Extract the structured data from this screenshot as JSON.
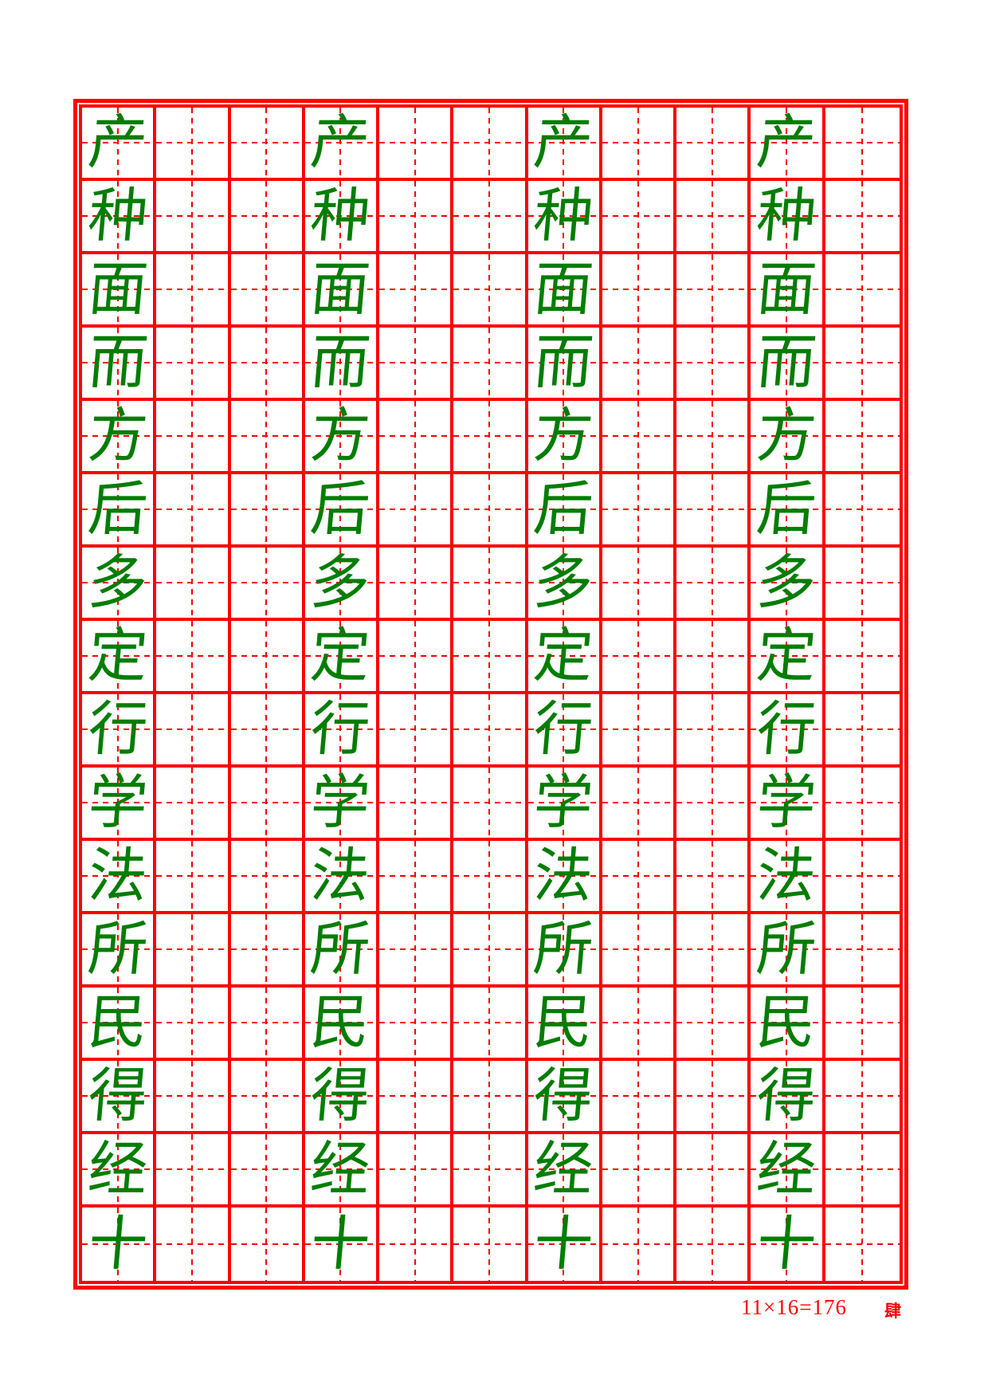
{
  "grid": {
    "rows": 16,
    "columns": 11,
    "character_columns": [
      1,
      4,
      7,
      10
    ],
    "row_characters": [
      "产",
      "种",
      "面",
      "而",
      "方",
      "后",
      "多",
      "定",
      "行",
      "学",
      "法",
      "所",
      "民",
      "得",
      "经",
      "十"
    ]
  },
  "footer": {
    "formula": "11×16=176",
    "page_number": "肆"
  },
  "colors": {
    "grid_red": "#ff0000",
    "character_green": "#007d00",
    "page_background": "#ffffff"
  }
}
